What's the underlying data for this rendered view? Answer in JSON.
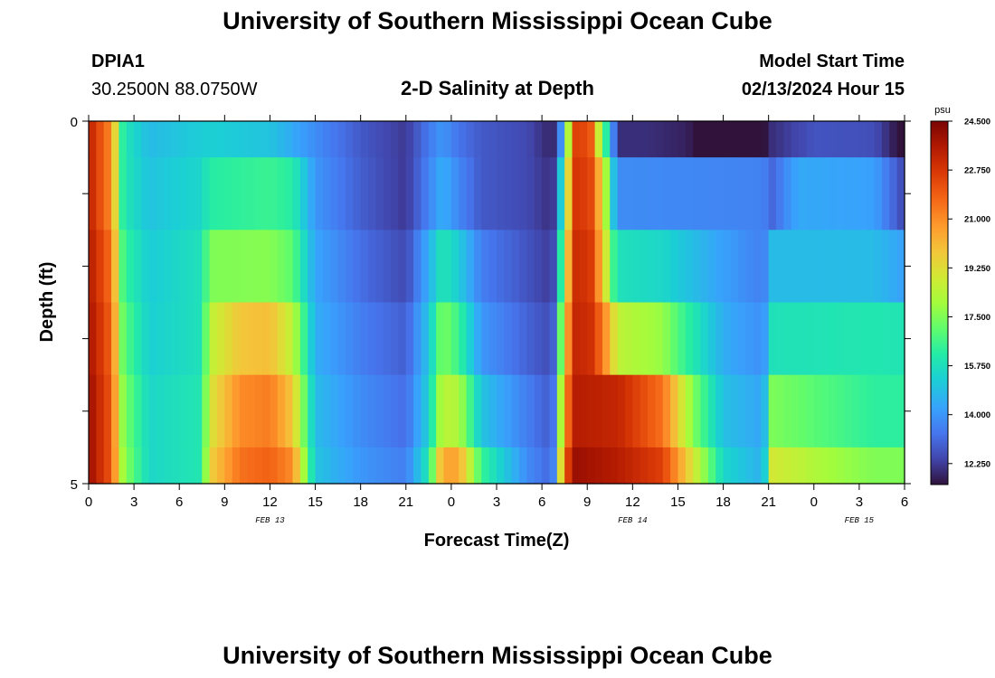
{
  "header": {
    "title": "University of Southern Mississippi Ocean Cube",
    "station": "DPIA1",
    "coords": "30.2500N  88.0750W",
    "plot_title": "2-D Salinity at Depth",
    "model_start_label": "Model Start Time",
    "model_start_value": "02/13/2024 Hour 15"
  },
  "footer": {
    "title": "University of Southern Mississippi Ocean Cube"
  },
  "chart_data": {
    "type": "heatmap",
    "title": "2-D Salinity at Depth",
    "xlabel": "Forecast Time(Z)",
    "ylabel": "Depth (ft)",
    "x_tick_labels": [
      "0",
      "3",
      "6",
      "9",
      "12",
      "15",
      "18",
      "21",
      "0",
      "3",
      "6",
      "9",
      "12",
      "15",
      "18",
      "21",
      "0",
      "3",
      "6"
    ],
    "date_labels": [
      {
        "label": "FEB 13",
        "x_hour": 12
      },
      {
        "label": "FEB 14",
        "x_hour": 36
      },
      {
        "label": "FEB 15",
        "x_hour": 51
      }
    ],
    "x_range_hours": [
      0,
      54
    ],
    "y_tick_labels": [
      {
        "label": "0",
        "depth": 0
      },
      {
        "label": "5",
        "depth": 5
      }
    ],
    "ylim": [
      0,
      5
    ],
    "colorbar": {
      "unit": "psu",
      "min": 11.5,
      "max": 24.5,
      "tick_labels": [
        "24.500",
        "22.750",
        "21.000",
        "19.250",
        "17.500",
        "15.750",
        "14.000",
        "12.250"
      ]
    },
    "depth_bands": [
      {
        "depth_top": 0.0,
        "depth_bottom": 0.5,
        "keys": [
          [
            0,
            23.4
          ],
          [
            1.5,
            21
          ],
          [
            2.3,
            16
          ],
          [
            4,
            14.8
          ],
          [
            8,
            15.3
          ],
          [
            12,
            15.0
          ],
          [
            15,
            13.8
          ],
          [
            18,
            12.8
          ],
          [
            21,
            12.2
          ],
          [
            22.5,
            13.4
          ],
          [
            23.4,
            14.0
          ],
          [
            24.5,
            13.3
          ],
          [
            26,
            12.8
          ],
          [
            29,
            12.5
          ],
          [
            30.7,
            11.8
          ],
          [
            31.3,
            14
          ],
          [
            31.6,
            16.5
          ],
          [
            32.1,
            22.5
          ],
          [
            33.2,
            22.3
          ],
          [
            33.6,
            19.5
          ],
          [
            34.5,
            15
          ],
          [
            35,
            12
          ],
          [
            37,
            12
          ],
          [
            39.5,
            11.8
          ],
          [
            41,
            11.2
          ],
          [
            43,
            11.0
          ],
          [
            44.4,
            11.2
          ],
          [
            45.2,
            12.0
          ],
          [
            48,
            12.7
          ],
          [
            52,
            12.6
          ],
          [
            53.6,
            11.5
          ],
          [
            54,
            11.5
          ]
        ]
      },
      {
        "depth_top": 0.5,
        "depth_bottom": 1.5,
        "keys": [
          [
            0,
            23.4
          ],
          [
            1.5,
            21
          ],
          [
            2.3,
            16
          ],
          [
            4,
            15.0
          ],
          [
            7.5,
            15.5
          ],
          [
            8,
            16.2
          ],
          [
            12,
            16.5
          ],
          [
            13.5,
            16.2
          ],
          [
            15,
            14.0
          ],
          [
            18,
            12.9
          ],
          [
            21,
            12.2
          ],
          [
            22.5,
            13.6
          ],
          [
            23.4,
            14.5
          ],
          [
            24.5,
            13.7
          ],
          [
            26,
            12.8
          ],
          [
            29,
            12.5
          ],
          [
            30.7,
            12.0
          ],
          [
            31.1,
            14
          ],
          [
            31.6,
            18
          ],
          [
            32.1,
            22.8
          ],
          [
            33.2,
            22.5
          ],
          [
            34,
            19.5
          ],
          [
            34.9,
            14
          ],
          [
            35,
            13.8
          ],
          [
            44.7,
            13.6
          ],
          [
            45,
            12.9
          ],
          [
            47,
            14.4
          ],
          [
            52,
            14.2
          ],
          [
            54,
            12.4
          ]
        ]
      },
      {
        "depth_top": 1.5,
        "depth_bottom": 2.5,
        "keys": [
          [
            0,
            23.6
          ],
          [
            1.5,
            21.5
          ],
          [
            2.3,
            16.5
          ],
          [
            4,
            15.2
          ],
          [
            7.5,
            15.8
          ],
          [
            8,
            17.5
          ],
          [
            12,
            17.6
          ],
          [
            13.5,
            17.0
          ],
          [
            15,
            14.3
          ],
          [
            18,
            13.2
          ],
          [
            21,
            12.5
          ],
          [
            22.5,
            14.5
          ],
          [
            23.4,
            16.0
          ],
          [
            24.5,
            15.2
          ],
          [
            26,
            13.5
          ],
          [
            29,
            12.7
          ],
          [
            30.7,
            12.2
          ],
          [
            31.1,
            15
          ],
          [
            31.6,
            19
          ],
          [
            32.1,
            23.0
          ],
          [
            33.2,
            22.8
          ],
          [
            34,
            20.0
          ],
          [
            34.9,
            15.8
          ],
          [
            35,
            15.8
          ],
          [
            38,
            15.5
          ],
          [
            42,
            14.2
          ],
          [
            44.7,
            13.5
          ],
          [
            45,
            14.8
          ],
          [
            52,
            14.8
          ],
          [
            54,
            14.2
          ]
        ]
      },
      {
        "depth_top": 2.5,
        "depth_bottom": 3.5,
        "keys": [
          [
            0,
            23.8
          ],
          [
            1.5,
            21.8
          ],
          [
            2.3,
            17
          ],
          [
            4,
            15.3
          ],
          [
            7.5,
            15.8
          ],
          [
            8,
            18.5
          ],
          [
            10,
            19.8
          ],
          [
            12,
            20.0
          ],
          [
            13.5,
            18.5
          ],
          [
            15,
            14.5
          ],
          [
            18,
            13.5
          ],
          [
            21,
            12.9
          ],
          [
            22.5,
            15.0
          ],
          [
            23.4,
            17.5
          ],
          [
            24.5,
            16.5
          ],
          [
            26,
            14.0
          ],
          [
            29,
            13.0
          ],
          [
            30.7,
            12.5
          ],
          [
            31.1,
            16
          ],
          [
            31.6,
            20
          ],
          [
            32.1,
            23.2
          ],
          [
            33.2,
            23.0
          ],
          [
            34,
            21.5
          ],
          [
            35,
            18.5
          ],
          [
            38,
            17.8
          ],
          [
            39,
            16.8
          ],
          [
            42,
            14.5
          ],
          [
            44.7,
            13.8
          ],
          [
            45,
            15.8
          ],
          [
            52,
            16.0
          ],
          [
            54,
            15.9
          ]
        ]
      },
      {
        "depth_top": 3.5,
        "depth_bottom": 4.5,
        "keys": [
          [
            0,
            24.0
          ],
          [
            1.5,
            22
          ],
          [
            2.3,
            17.5
          ],
          [
            4,
            15.5
          ],
          [
            7.5,
            16.0
          ],
          [
            8,
            19.0
          ],
          [
            10,
            21.0
          ],
          [
            12,
            21.3
          ],
          [
            13.5,
            19.8
          ],
          [
            15,
            14.8
          ],
          [
            18,
            13.8
          ],
          [
            21,
            13.2
          ],
          [
            22.5,
            15.3
          ],
          [
            23.4,
            18.5
          ],
          [
            24.5,
            18.2
          ],
          [
            26,
            15.0
          ],
          [
            29,
            13.5
          ],
          [
            30.7,
            12.8
          ],
          [
            31.1,
            17
          ],
          [
            31.6,
            21
          ],
          [
            32.1,
            23.5
          ],
          [
            35,
            23.2
          ],
          [
            38,
            21.5
          ],
          [
            40,
            17.5
          ],
          [
            42,
            14.9
          ],
          [
            44.7,
            14.3
          ],
          [
            45,
            17.5
          ],
          [
            49,
            16.8
          ],
          [
            52,
            16.3
          ],
          [
            54,
            16.3
          ]
        ]
      },
      {
        "depth_top": 4.5,
        "depth_bottom": 5.0,
        "keys": [
          [
            0,
            24.0
          ],
          [
            1.5,
            22
          ],
          [
            2.3,
            17.8
          ],
          [
            4,
            15.5
          ],
          [
            7.5,
            16.0
          ],
          [
            8,
            19.5
          ],
          [
            10,
            21.5
          ],
          [
            12,
            21.8
          ],
          [
            13.5,
            21.0
          ],
          [
            15,
            15.0
          ],
          [
            18,
            14.0
          ],
          [
            21,
            13.5
          ],
          [
            22.5,
            16.0
          ],
          [
            23.4,
            20.5
          ],
          [
            24.5,
            20.5
          ],
          [
            26,
            16.5
          ],
          [
            29,
            13.8
          ],
          [
            30.7,
            13.0
          ],
          [
            31.1,
            18
          ],
          [
            31.6,
            22
          ],
          [
            32.1,
            24.0
          ],
          [
            35,
            23.5
          ],
          [
            38,
            22.5
          ],
          [
            40,
            19.0
          ],
          [
            42,
            15.5
          ],
          [
            44.7,
            14.5
          ],
          [
            45,
            19.0
          ],
          [
            49,
            18.0
          ],
          [
            52,
            17.5
          ],
          [
            54,
            17.5
          ]
        ]
      }
    ]
  }
}
